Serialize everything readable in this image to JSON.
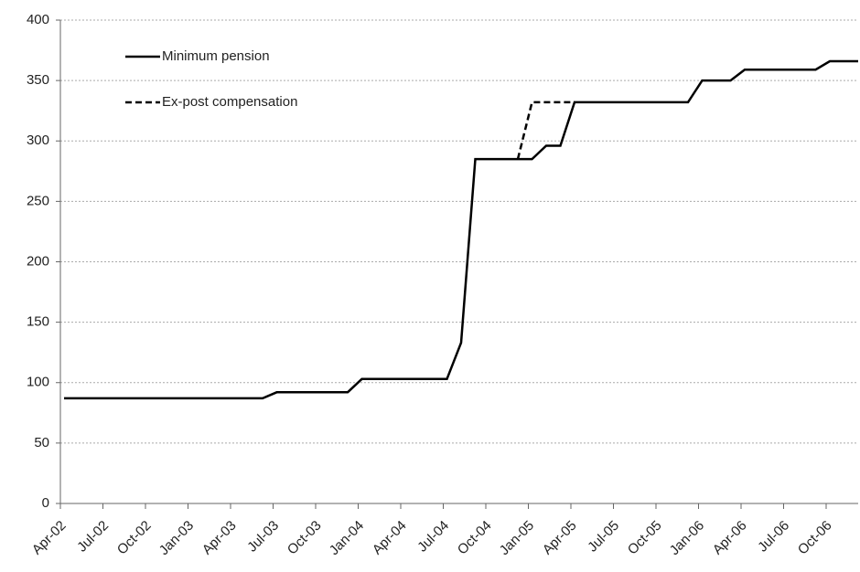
{
  "chart_data": {
    "type": "line",
    "categories": [
      "Apr-02",
      null,
      null,
      "Jul-02",
      null,
      null,
      "Oct-02",
      null,
      null,
      "Jan-03",
      null,
      null,
      "Apr-03",
      null,
      null,
      "Jul-03",
      null,
      null,
      "Oct-03",
      null,
      null,
      "Jan-04",
      null,
      null,
      "Apr-04",
      null,
      null,
      "Jul-04",
      null,
      null,
      "Oct-04",
      null,
      null,
      "Jan-05",
      null,
      null,
      "Apr-05",
      null,
      null,
      "Jul-05",
      null,
      null,
      "Oct-05",
      null,
      null,
      "Jan-06",
      null,
      null,
      "Apr-06",
      null,
      null,
      "Jul-06",
      null,
      null,
      "Oct-06",
      null,
      null
    ],
    "series": [
      {
        "name": "Minimum pension",
        "color": "#000000",
        "dash": false,
        "values": [
          87,
          87,
          87,
          87,
          87,
          87,
          87,
          87,
          87,
          87,
          87,
          87,
          87,
          87,
          87,
          92,
          92,
          92,
          92,
          92,
          92,
          103,
          103,
          103,
          103,
          103,
          103,
          103,
          133,
          285,
          285,
          285,
          285,
          285,
          296,
          296,
          332,
          332,
          332,
          332,
          332,
          332,
          332,
          332,
          332,
          350,
          350,
          350,
          359,
          359,
          359,
          359,
          359,
          359,
          366,
          366,
          366
        ]
      },
      {
        "name": "Ex-post compensation",
        "color": "#000000",
        "dash": true,
        "values": [
          null,
          null,
          null,
          null,
          null,
          null,
          null,
          null,
          null,
          null,
          null,
          null,
          null,
          null,
          null,
          null,
          null,
          null,
          null,
          null,
          null,
          null,
          null,
          null,
          null,
          null,
          null,
          null,
          null,
          null,
          null,
          null,
          285,
          332,
          332,
          332,
          332,
          null,
          null,
          null,
          null,
          null,
          null,
          null,
          null,
          null,
          null,
          null,
          null,
          null,
          null,
          null,
          null,
          null,
          null,
          null,
          null
        ]
      }
    ],
    "ylim": [
      0,
      400
    ],
    "yticks": [
      0,
      50,
      100,
      150,
      200,
      250,
      300,
      350,
      400
    ],
    "grid": true,
    "legend": "upper-left"
  }
}
